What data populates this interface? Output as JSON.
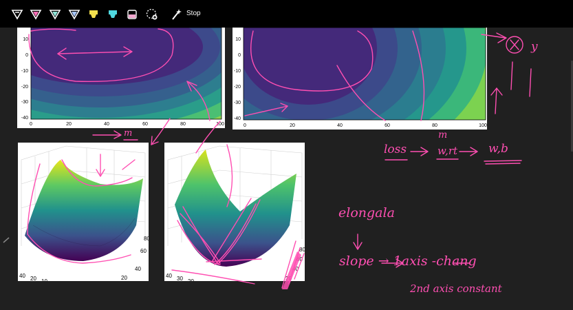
{
  "toolbar": {
    "stop_label": "Stop",
    "tools": [
      {
        "name": "pen-white-icon",
        "color": "#ffffff"
      },
      {
        "name": "pen-pink-icon",
        "color": "#ff6fb7"
      },
      {
        "name": "pen-teal-icon",
        "color": "#8fe3d7"
      },
      {
        "name": "pen-blue-icon",
        "color": "#a7c7ff"
      },
      {
        "name": "highlighter-yellow-icon",
        "color": "#f4e04d"
      },
      {
        "name": "highlighter-cyan-icon",
        "color": "#4fd8e0"
      },
      {
        "name": "highlighter-pink-icon",
        "color": "#f2a6cf"
      },
      {
        "name": "lasso-eraser-icon",
        "color": "#ffffff"
      },
      {
        "name": "magic-wand-icon",
        "color": "#ffffff"
      }
    ]
  },
  "plots": {
    "contour_left": {
      "y_ticks": [
        "10",
        "0",
        "-10",
        "-20",
        "-30",
        "-40"
      ],
      "x_ticks": [
        "0",
        "20",
        "40",
        "60",
        "80",
        "100"
      ]
    },
    "contour_right": {
      "y_ticks": [
        "10",
        "0",
        "-10",
        "-20",
        "-30",
        "-40"
      ],
      "x_ticks": [
        "0",
        "20",
        "40",
        "60",
        "80",
        "100"
      ]
    },
    "surface_left": {
      "base_ticks": [
        "40",
        "20",
        "10"
      ],
      "side_ticks": [
        "80",
        "60",
        "40",
        "20"
      ]
    },
    "surface_right": {
      "base_ticks": [
        "40",
        "30",
        "20"
      ],
      "side_ticks": [
        "80",
        "60",
        "40",
        "20"
      ]
    }
  },
  "annotations": {
    "m_under": "m",
    "m_top": "m",
    "loss_chain": [
      "loss",
      "→",
      "w,rt",
      "→",
      "w,b"
    ],
    "elongated": "elongala",
    "slope_line": "slope → 1axis  -chang",
    "second_axis": "2nd axis  constant",
    "crossed_x": "X",
    "y_letter": "y"
  },
  "colors": {
    "ink": "#ff4fb2",
    "background": "#202020",
    "toolbar": "#000000"
  }
}
